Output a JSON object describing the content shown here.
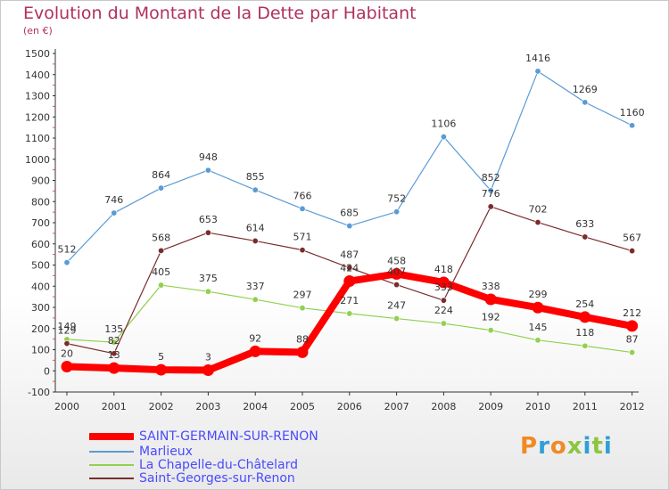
{
  "chart_data": {
    "type": "line",
    "title": "Evolution du Montant de la Dette par Habitant",
    "subtitle": "(en €)",
    "x": [
      "2000",
      "2001",
      "2002",
      "2003",
      "2004",
      "2005",
      "2006",
      "2007",
      "2008",
      "2009",
      "2010",
      "2011",
      "2012"
    ],
    "ylim": [
      -100,
      1500
    ],
    "yticks": [
      -100,
      0,
      100,
      200,
      300,
      400,
      500,
      600,
      700,
      800,
      900,
      1000,
      1100,
      1200,
      1300,
      1400,
      1500
    ],
    "grid": false,
    "legend_position": "bottom-left",
    "series": [
      {
        "name": "SAINT-GERMAIN-SUR-RENON",
        "color": "#ff0000",
        "values": [
          20,
          13,
          5,
          3,
          92,
          88,
          424,
          458,
          418,
          338,
          299,
          254,
          212
        ],
        "labels": [
          "20",
          "13",
          "5",
          "3",
          "92",
          "88",
          "424",
          "458",
          "418",
          "338",
          "299",
          "254",
          "212"
        ]
      },
      {
        "name": "Marlieux",
        "color": "#5b9bd5",
        "values": [
          512,
          746,
          864,
          948,
          855,
          766,
          685,
          752,
          1106,
          852,
          1416,
          1269,
          1160
        ],
        "labels": [
          "512",
          "746",
          "864",
          "948",
          "855",
          "766",
          "685",
          "752",
          "1106",
          "852",
          "1416",
          "1269",
          "1160"
        ]
      },
      {
        "name": "La Chapelle-du-Châtelard",
        "color": "#92d050",
        "values": [
          149,
          135,
          405,
          375,
          337,
          297,
          271,
          247,
          224,
          192,
          145,
          118,
          87
        ],
        "labels": [
          "149",
          "135",
          "405",
          "375",
          "337",
          "297",
          "271",
          "247",
          "224",
          "192",
          "145",
          "118",
          "87"
        ]
      },
      {
        "name": "Saint-Georges-sur-Renon",
        "color": "#7b2c2c",
        "values": [
          129,
          82,
          568,
          653,
          614,
          571,
          487,
          407,
          333,
          776,
          702,
          633,
          567
        ],
        "labels": [
          "129",
          "82",
          "568",
          "653",
          "614",
          "571",
          "487",
          "407",
          "333",
          "776",
          "702",
          "633",
          "567"
        ]
      }
    ]
  },
  "logo": {
    "text": "Proxiti"
  }
}
